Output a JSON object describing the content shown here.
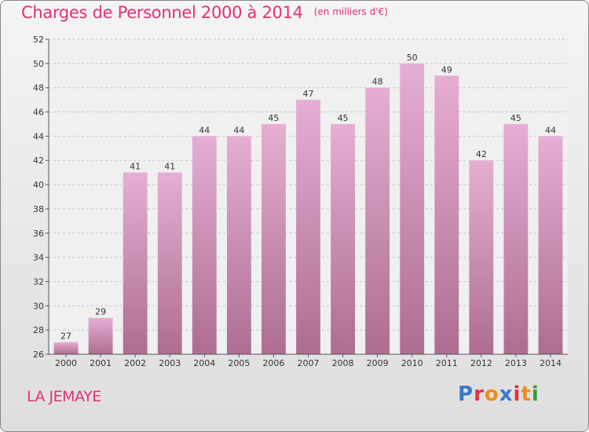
{
  "header": {
    "title": "Charges de Personnel 2000 à 2014",
    "subtitle": "(en milliers d'€)"
  },
  "footer": {
    "location": "LA JEMAYE",
    "logo_text": "Proxiti",
    "logo_colors": [
      "#3a78c9",
      "#e4313c",
      "#f08a1e",
      "#3a78c9",
      "#e4313c",
      "#f08a1e",
      "#3a9a3a"
    ]
  },
  "colors": {
    "title": "#e0317a",
    "bar_top": "#e6aed3",
    "bar_bottom": "#ad6d92"
  },
  "chart_data": {
    "type": "bar",
    "title": "Charges de Personnel 2000 à 2014",
    "subtitle": "(en milliers d'€)",
    "categories": [
      "2000",
      "2001",
      "2002",
      "2003",
      "2004",
      "2005",
      "2006",
      "2007",
      "2008",
      "2009",
      "2010",
      "2011",
      "2012",
      "2013",
      "2014"
    ],
    "values": [
      27,
      29,
      41,
      41,
      44,
      44,
      45,
      47,
      45,
      48,
      50,
      49,
      42,
      45,
      44
    ],
    "ylim": [
      26,
      52
    ],
    "yticks": [
      26,
      28,
      30,
      32,
      34,
      36,
      38,
      40,
      42,
      44,
      46,
      48,
      50,
      52
    ],
    "grid": true,
    "xlabel": "",
    "ylabel": ""
  }
}
